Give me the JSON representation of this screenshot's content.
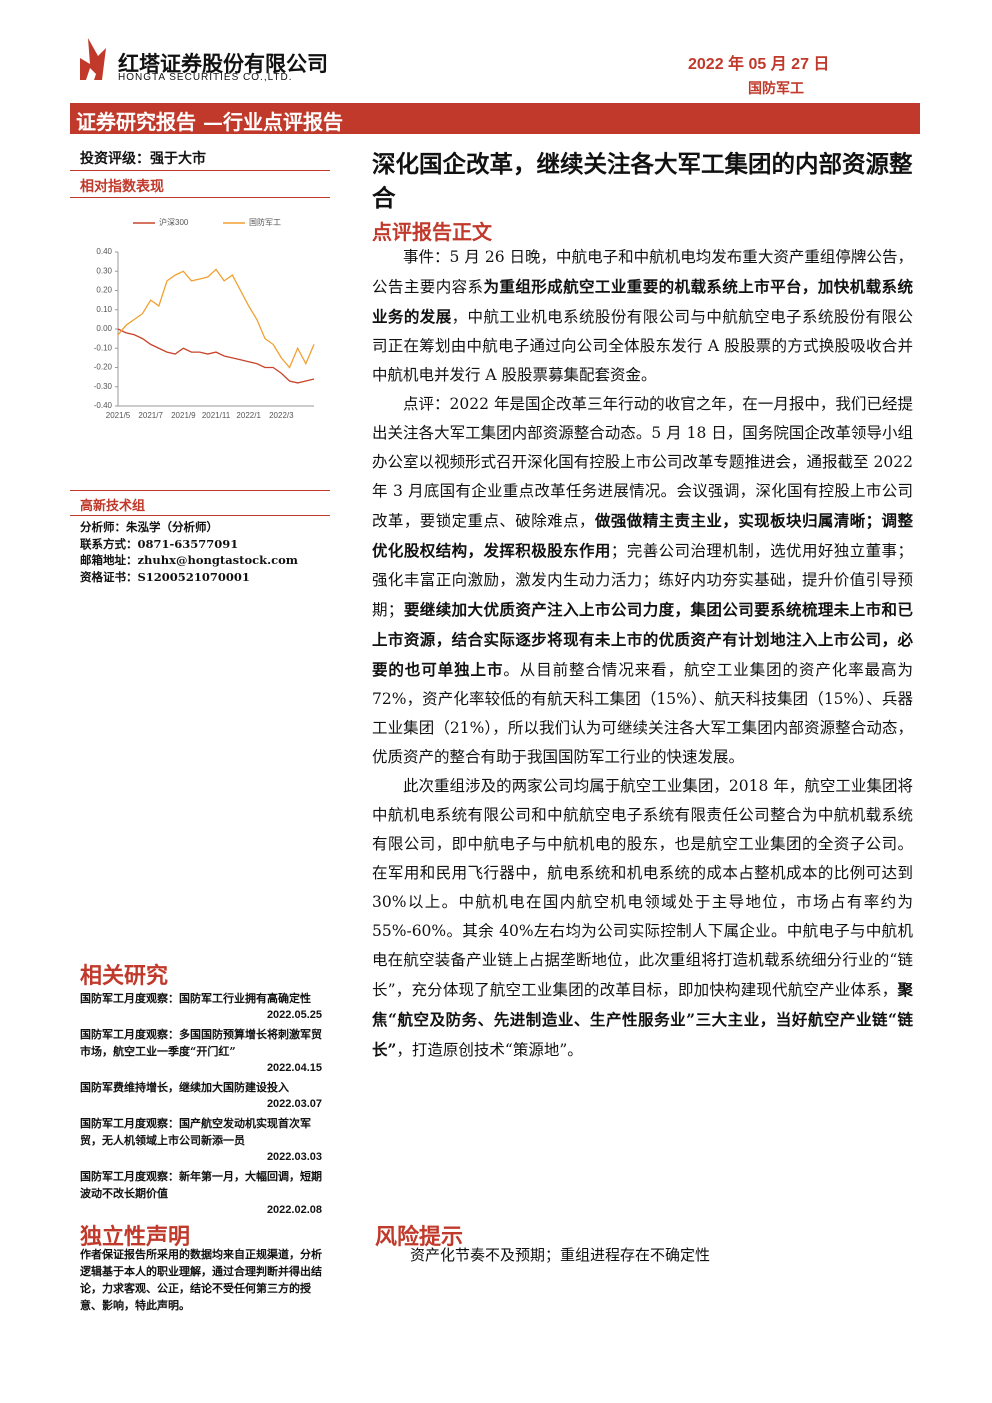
{
  "header": {
    "company_cn": "红塔证券股份有限公司",
    "company_en": "HONGTA SECURITIES CO.,LTD.",
    "date": "2022 年 05 月 27 日",
    "sector": "国防军工",
    "banner": "证券研究报告 —行业点评报告"
  },
  "sidebar": {
    "rating": "投资评级：强于大市",
    "chart_heading": "相对指数表现",
    "team": "高新技术组",
    "analyst": [
      "分析师：朱泓学（分析师）",
      "联系方式：0871-63577091",
      "邮箱地址：zhuhx@hongtastock.com",
      "资格证书：S1200521070001"
    ],
    "related_heading": "相关研究",
    "related": [
      {
        "text": "国防军工月度观察：国防军工行业拥有高确定性",
        "date": "2022.05.25"
      },
      {
        "text": "国防军工月度观察：多国国防预算增长将刺激军贸市场，航空工业一季度“开门红”",
        "date": "2022.04.15"
      },
      {
        "text": "国防军费维持增长，继续加大国防建设投入",
        "date": "2022.03.07"
      },
      {
        "text": "国防军工月度观察：国产航空发动机实现首次军贸，无人机领域上市公司新添一员",
        "date": "2022.03.03"
      },
      {
        "text": "国防军工月度观察：新年第一月，大幅回调，短期波动不改长期价值",
        "date": "2022.02.08"
      }
    ],
    "statement_heading": "独立性声明",
    "statement": "作者保证报告所采用的数据均来自正规渠道，分析逻辑基于本人的职业理解，通过合理判断并得出结论，力求客观、公正，结论不受任何第三方的授意、影响，特此声明。"
  },
  "chart_data": {
    "type": "line",
    "categories": [
      "2021/5",
      null,
      null,
      null,
      "2021/7",
      null,
      null,
      null,
      "2021/9",
      null,
      null,
      null,
      "2021/11",
      null,
      null,
      null,
      "2022/1",
      null,
      null,
      null,
      "2022/3",
      null,
      null,
      null,
      null
    ],
    "series": [
      {
        "name": "沪深300",
        "color": "#c8442c",
        "values": [
          0.0,
          -0.02,
          -0.03,
          -0.05,
          -0.08,
          -0.1,
          -0.12,
          -0.13,
          -0.1,
          -0.12,
          -0.12,
          -0.13,
          -0.12,
          -0.14,
          -0.15,
          -0.16,
          -0.17,
          -0.18,
          -0.2,
          -0.2,
          -0.23,
          -0.27,
          -0.28,
          -0.27,
          -0.26
        ]
      },
      {
        "name": "国防军工",
        "color": "#f0a030",
        "values": [
          -0.03,
          0.02,
          0.05,
          0.08,
          0.15,
          0.12,
          0.25,
          0.28,
          0.3,
          0.25,
          0.26,
          0.27,
          0.31,
          0.25,
          0.28,
          0.2,
          0.12,
          0.05,
          -0.05,
          -0.08,
          -0.15,
          -0.2,
          -0.1,
          -0.18,
          -0.08
        ]
      }
    ],
    "ylim": [
      -0.4,
      0.4
    ],
    "yticks": [
      {
        "value": 0.4,
        "label": "0.40"
      },
      {
        "value": 0.3,
        "label": "0.30"
      },
      {
        "value": 0.2,
        "label": "0.20"
      },
      {
        "value": 0.1,
        "label": "0.10"
      },
      {
        "value": 0,
        "label": "0.00"
      },
      {
        "value": -0.1,
        "label": "-0.10"
      },
      {
        "value": -0.2,
        "label": "-0.20"
      },
      {
        "value": -0.3,
        "label": "-0.30"
      },
      {
        "value": -0.4,
        "label": "-0.40"
      }
    ],
    "legend": "top"
  },
  "main": {
    "title": "深化国企改革，继续关注各大军工集团的内部资源整合",
    "section": "点评报告正文",
    "paragraphs": [
      [
        {
          "text": "事件：5 月 26 日晚，中航电子和中航机电均发布重大资产重组停牌公告，公告主要内容系",
          "bold": false
        },
        {
          "text": "为重组形成航空工业重要的机载系统上市平台，加快机载系统业务的发展",
          "bold": true
        },
        {
          "text": "，中航工业机电系统股份有限公司与中航航空电子系统股份有限公司正在筹划由中航电子通过向公司全体股东发行 A 股股票的方式换股吸收合并中航机电并发行 A 股股票募集配套资金。",
          "bold": false
        }
      ],
      [
        {
          "text": "点评：2022 年是国企改革三年行动的收官之年，在一月报中，我们已经提出关注各大军工集团内部资源整合动态。5 月 18 日，国务院国企改革领导小组办公室以视频形式召开深化国有控股上市公司改革专题推进会，通报截至 2022 年 3 月底国有企业重点改革任务进展情况。会议强调，深化国有控股上市公司改革，要锁定重点、破除难点，",
          "bold": false
        },
        {
          "text": "做强做精主责主业，实现板块归属清晰；调整优化股权结构，发挥积极股东作用",
          "bold": true
        },
        {
          "text": "；完善公司治理机制，选优用好独立董事；强化丰富正向激励，激发内生动力活力；练好内功夯实基础，提升价值引导预期；",
          "bold": false
        },
        {
          "text": "要继续加大优质资产注入上市公司力度，集团公司要系统梳理未上市和已上市资源，结合实际逐步将现有未上市的优质资产有计划地注入上市公司，必要的也可单独上市",
          "bold": true
        },
        {
          "text": "。从目前整合情况来看，航空工业集团的资产化率最高为 72%，资产化率较低的有航天科工集团（15%）、航天科技集团（15%）、兵器工业集团（21%），所以我们认为可继续关注各大军工集团内部资源整合动态，优质资产的整合有助于我国国防军工行业的快速发展。",
          "bold": false
        }
      ],
      [
        {
          "text": "此次重组涉及的两家公司均属于航空工业集团，2018 年，航空工业集团将中航机电系统有限公司和中航航空电子系统有限责任公司整合为中航机载系统有限公司，即中航电子与中航机电的股东，也是航空工业集团的全资子公司。在军用和民用飞行器中，航电系统和机电系统的成本占整机成本的比例可达到 30%以上。中航机电在国内航空机电领域处于主导地位，市场占有率约为 55%-60%。其余 40%左右均为公司实际控制人下属企业。中航电子与中航机电在航空装备产业链上占据垄断地位，此次重组将打造机载系统细分行业的“链长”，充分体现了航空工业集团的改革目标，即加快构建现代航空产业体系，",
          "bold": false
        },
        {
          "text": "聚焦“航空及防务、先进制造业、生产性服务业”三大主业，当好航空产业链“链长”",
          "bold": true
        },
        {
          "text": "，打造原创技术“策源地”。",
          "bold": false
        }
      ]
    ],
    "risk_heading": "风险提示",
    "risk": "资产化节奏不及预期；重组进程存在不确定性"
  }
}
